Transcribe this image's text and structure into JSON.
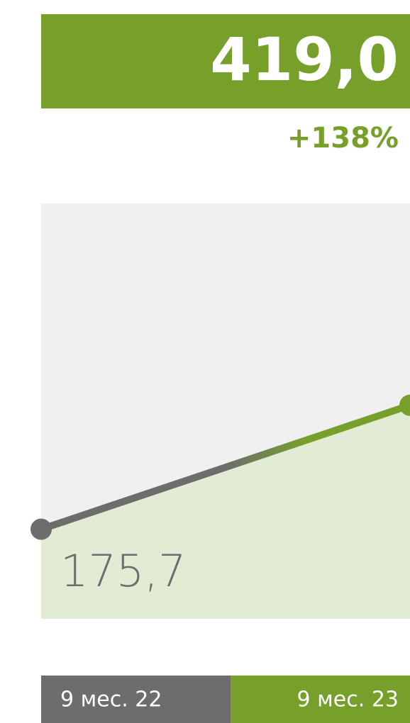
{
  "chart_data": {
    "type": "line",
    "categories": [
      "9 мес. 22",
      "9 мес. 23"
    ],
    "values": [
      175.7,
      419.0
    ],
    "value_labels": [
      "175,7",
      "419,0"
    ],
    "change_label": "+138%",
    "colors": [
      "#6d6d6d",
      "#76a02a"
    ],
    "area_color": "#e2ecd4",
    "ylim": [
      0,
      815
    ]
  }
}
